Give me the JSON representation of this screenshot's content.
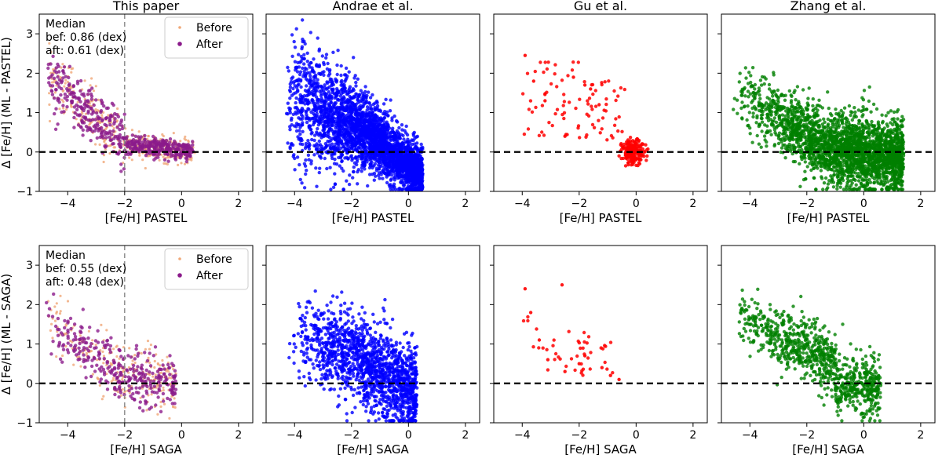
{
  "chart_data": {
    "type": "scatter",
    "columns": [
      "This paper",
      "Andrae et al.",
      "Gu et al.",
      "Zhang et al."
    ],
    "rows": [
      {
        "ylabel": "Δ [Fe/H] (ML - PASTEL)",
        "xlabel": "[Fe/H] PASTEL"
      },
      {
        "ylabel": "Δ [Fe/H] (ML - SAGA)",
        "xlabel": "[Fe/H] SAGA"
      }
    ],
    "xlim": [
      -5,
      2.5
    ],
    "ylim": [
      -1,
      3.5
    ],
    "xticks": [
      -4,
      -2,
      0,
      2
    ],
    "yticks": [
      -1,
      0,
      1,
      2,
      3
    ],
    "xtick_labels": [
      "−4",
      "−2",
      "0",
      "2"
    ],
    "ytick_labels": [
      "−1",
      "0",
      "1",
      "2",
      "3"
    ],
    "zero_line": 0,
    "threshold_line": -2,
    "median_text": [
      {
        "title": "Median",
        "before": "bef: 0.86 (dex)",
        "after": "aft: 0.61 (dex)"
      },
      {
        "title": "Median",
        "before": "bef: 0.55 (dex)",
        "after": "aft: 0.48 (dex)"
      }
    ],
    "legend": [
      {
        "label": "Before",
        "color": "#f0a878"
      },
      {
        "label": "After",
        "color": "#8b1a8b"
      }
    ],
    "series_colors": {
      "before": "#f0a878",
      "after": "#8b1a8b",
      "andrae": "#0000ff",
      "gu": "#ff0000",
      "zhang": "#008000"
    },
    "sample_points": {
      "row1_this_paper_after": [
        [
          -4.2,
          1.8
        ],
        [
          -3.8,
          1.4
        ],
        [
          -3.5,
          1.1
        ],
        [
          -3.2,
          0.8
        ],
        [
          -3.0,
          0.6
        ],
        [
          -2.8,
          0.4
        ],
        [
          -2.5,
          0.3
        ],
        [
          -2.2,
          0.2
        ],
        [
          -1.8,
          0.1
        ],
        [
          -1.5,
          0.05
        ],
        [
          -1.0,
          0.0
        ],
        [
          -0.5,
          -0.05
        ],
        [
          0.0,
          -0.05
        ],
        [
          0.3,
          -0.1
        ]
      ],
      "row1_gu": [
        [
          -3.9,
          2.45
        ],
        [
          -3.6,
          1.8
        ],
        [
          -3.2,
          1.3
        ],
        [
          -2.5,
          0.4
        ],
        [
          -2.2,
          1.9
        ],
        [
          -1.8,
          1.7
        ],
        [
          -1.6,
          1.6
        ],
        [
          -1.3,
          1.2
        ],
        [
          -0.3,
          0.1
        ],
        [
          0.0,
          0.0
        ],
        [
          0.2,
          -0.1
        ]
      ],
      "row2_gu": [
        [
          -3.9,
          2.4
        ],
        [
          -3.7,
          1.8
        ],
        [
          -3.4,
          1.1
        ],
        [
          -3.1,
          0.6
        ],
        [
          -2.6,
          2.5
        ],
        [
          -2.5,
          0.3
        ],
        [
          -2.0,
          0.5
        ],
        [
          -1.8,
          0.7
        ],
        [
          -1.2,
          0.4
        ],
        [
          -0.9,
          0.2
        ],
        [
          -0.6,
          0.1
        ]
      ]
    }
  }
}
